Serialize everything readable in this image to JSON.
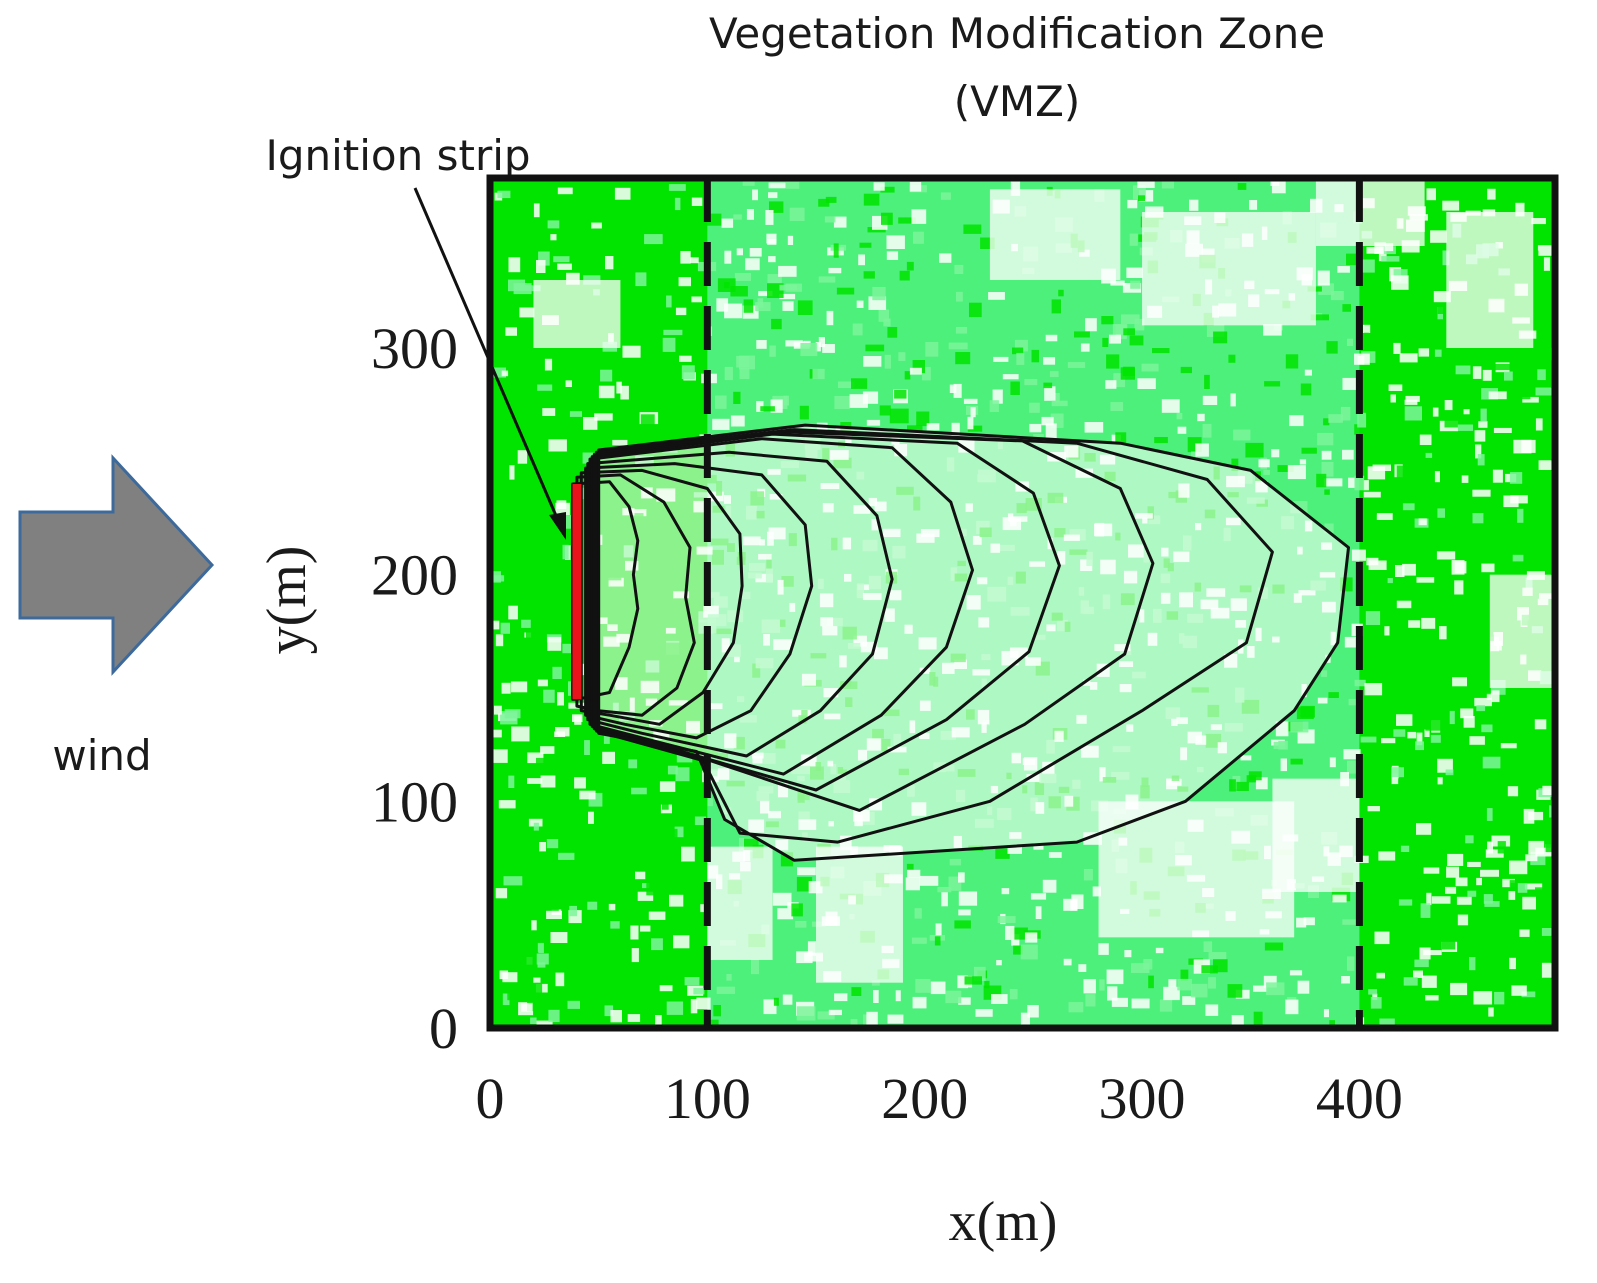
{
  "annotations": {
    "title_line1": "Vegetation Modification Zone",
    "title_line2": "(VMZ)",
    "ignition_label": "Ignition strip",
    "wind_label": "wind"
  },
  "colors": {
    "vegetation": "#00e400",
    "modified_vegetation": "#4cf07a",
    "burned": "#ffffff",
    "fire_front": "#111111",
    "ignition": "#e8131b",
    "wind_arrow_fill": "#808080",
    "wind_arrow_stroke": "#3d6a9a"
  },
  "chart_data": {
    "type": "contour-map",
    "xlabel": "x(m)",
    "ylabel": "y(m)",
    "xlim": [
      0,
      490
    ],
    "ylim": [
      0,
      375
    ],
    "x_ticks": [
      0,
      100,
      200,
      300,
      400
    ],
    "y_ticks": [
      0,
      100,
      200,
      300
    ],
    "vmz_bounds_x": [
      100,
      400
    ],
    "ignition_strip": {
      "x": 40,
      "y0": 145,
      "y1": 240
    },
    "wind_direction": "positive x",
    "fire_front_contours": [
      [
        [
          38,
          145
        ],
        [
          38,
          240
        ],
        [
          55,
          241
        ],
        [
          64,
          230
        ],
        [
          68,
          215
        ],
        [
          66,
          200
        ],
        [
          68,
          185
        ],
        [
          64,
          168
        ],
        [
          55,
          148
        ],
        [
          40,
          145
        ]
      ],
      [
        [
          40,
          142
        ],
        [
          40,
          243
        ],
        [
          60,
          244
        ],
        [
          80,
          232
        ],
        [
          92,
          212
        ],
        [
          90,
          190
        ],
        [
          94,
          170
        ],
        [
          86,
          150
        ],
        [
          70,
          138
        ],
        [
          50,
          140
        ]
      ],
      [
        [
          42,
          140
        ],
        [
          42,
          245
        ],
        [
          70,
          246
        ],
        [
          100,
          238
        ],
        [
          115,
          218
        ],
        [
          116,
          195
        ],
        [
          112,
          170
        ],
        [
          98,
          148
        ],
        [
          78,
          134
        ],
        [
          55,
          138
        ]
      ],
      [
        [
          44,
          138
        ],
        [
          44,
          247
        ],
        [
          85,
          249
        ],
        [
          125,
          244
        ],
        [
          145,
          222
        ],
        [
          148,
          195
        ],
        [
          138,
          165
        ],
        [
          120,
          140
        ],
        [
          95,
          128
        ],
        [
          62,
          134
        ]
      ],
      [
        [
          45,
          136
        ],
        [
          45,
          249
        ],
        [
          110,
          254
        ],
        [
          155,
          250
        ],
        [
          178,
          226
        ],
        [
          185,
          198
        ],
        [
          176,
          165
        ],
        [
          152,
          140
        ],
        [
          118,
          120
        ],
        [
          70,
          130
        ]
      ],
      [
        [
          46,
          134
        ],
        [
          46,
          251
        ],
        [
          125,
          260
        ],
        [
          185,
          256
        ],
        [
          212,
          232
        ],
        [
          222,
          202
        ],
        [
          210,
          168
        ],
        [
          180,
          138
        ],
        [
          135,
          112
        ],
        [
          78,
          126
        ]
      ],
      [
        [
          47,
          133
        ],
        [
          47,
          252
        ],
        [
          130,
          262
        ],
        [
          215,
          258
        ],
        [
          250,
          236
        ],
        [
          262,
          204
        ],
        [
          248,
          166
        ],
        [
          210,
          136
        ],
        [
          150,
          105
        ],
        [
          88,
          122
        ]
      ],
      [
        [
          48,
          132
        ],
        [
          48,
          253
        ],
        [
          135,
          263
        ],
        [
          245,
          259
        ],
        [
          290,
          238
        ],
        [
          305,
          205
        ],
        [
          292,
          165
        ],
        [
          246,
          134
        ],
        [
          170,
          96
        ],
        [
          95,
          120
        ]
      ],
      [
        [
          49,
          131
        ],
        [
          49,
          254
        ],
        [
          140,
          264
        ],
        [
          270,
          258
        ],
        [
          330,
          242
        ],
        [
          360,
          210
        ],
        [
          348,
          170
        ],
        [
          300,
          140
        ],
        [
          230,
          100
        ],
        [
          160,
          82
        ],
        [
          115,
          86
        ],
        [
          98,
          118
        ]
      ],
      [
        [
          50,
          130
        ],
        [
          50,
          255
        ],
        [
          145,
          266
        ],
        [
          290,
          258
        ],
        [
          350,
          246
        ],
        [
          395,
          212
        ],
        [
          390,
          170
        ],
        [
          370,
          140
        ],
        [
          320,
          100
        ],
        [
          270,
          82
        ],
        [
          205,
          78
        ],
        [
          140,
          74
        ],
        [
          108,
          92
        ],
        [
          95,
          122
        ]
      ]
    ]
  }
}
